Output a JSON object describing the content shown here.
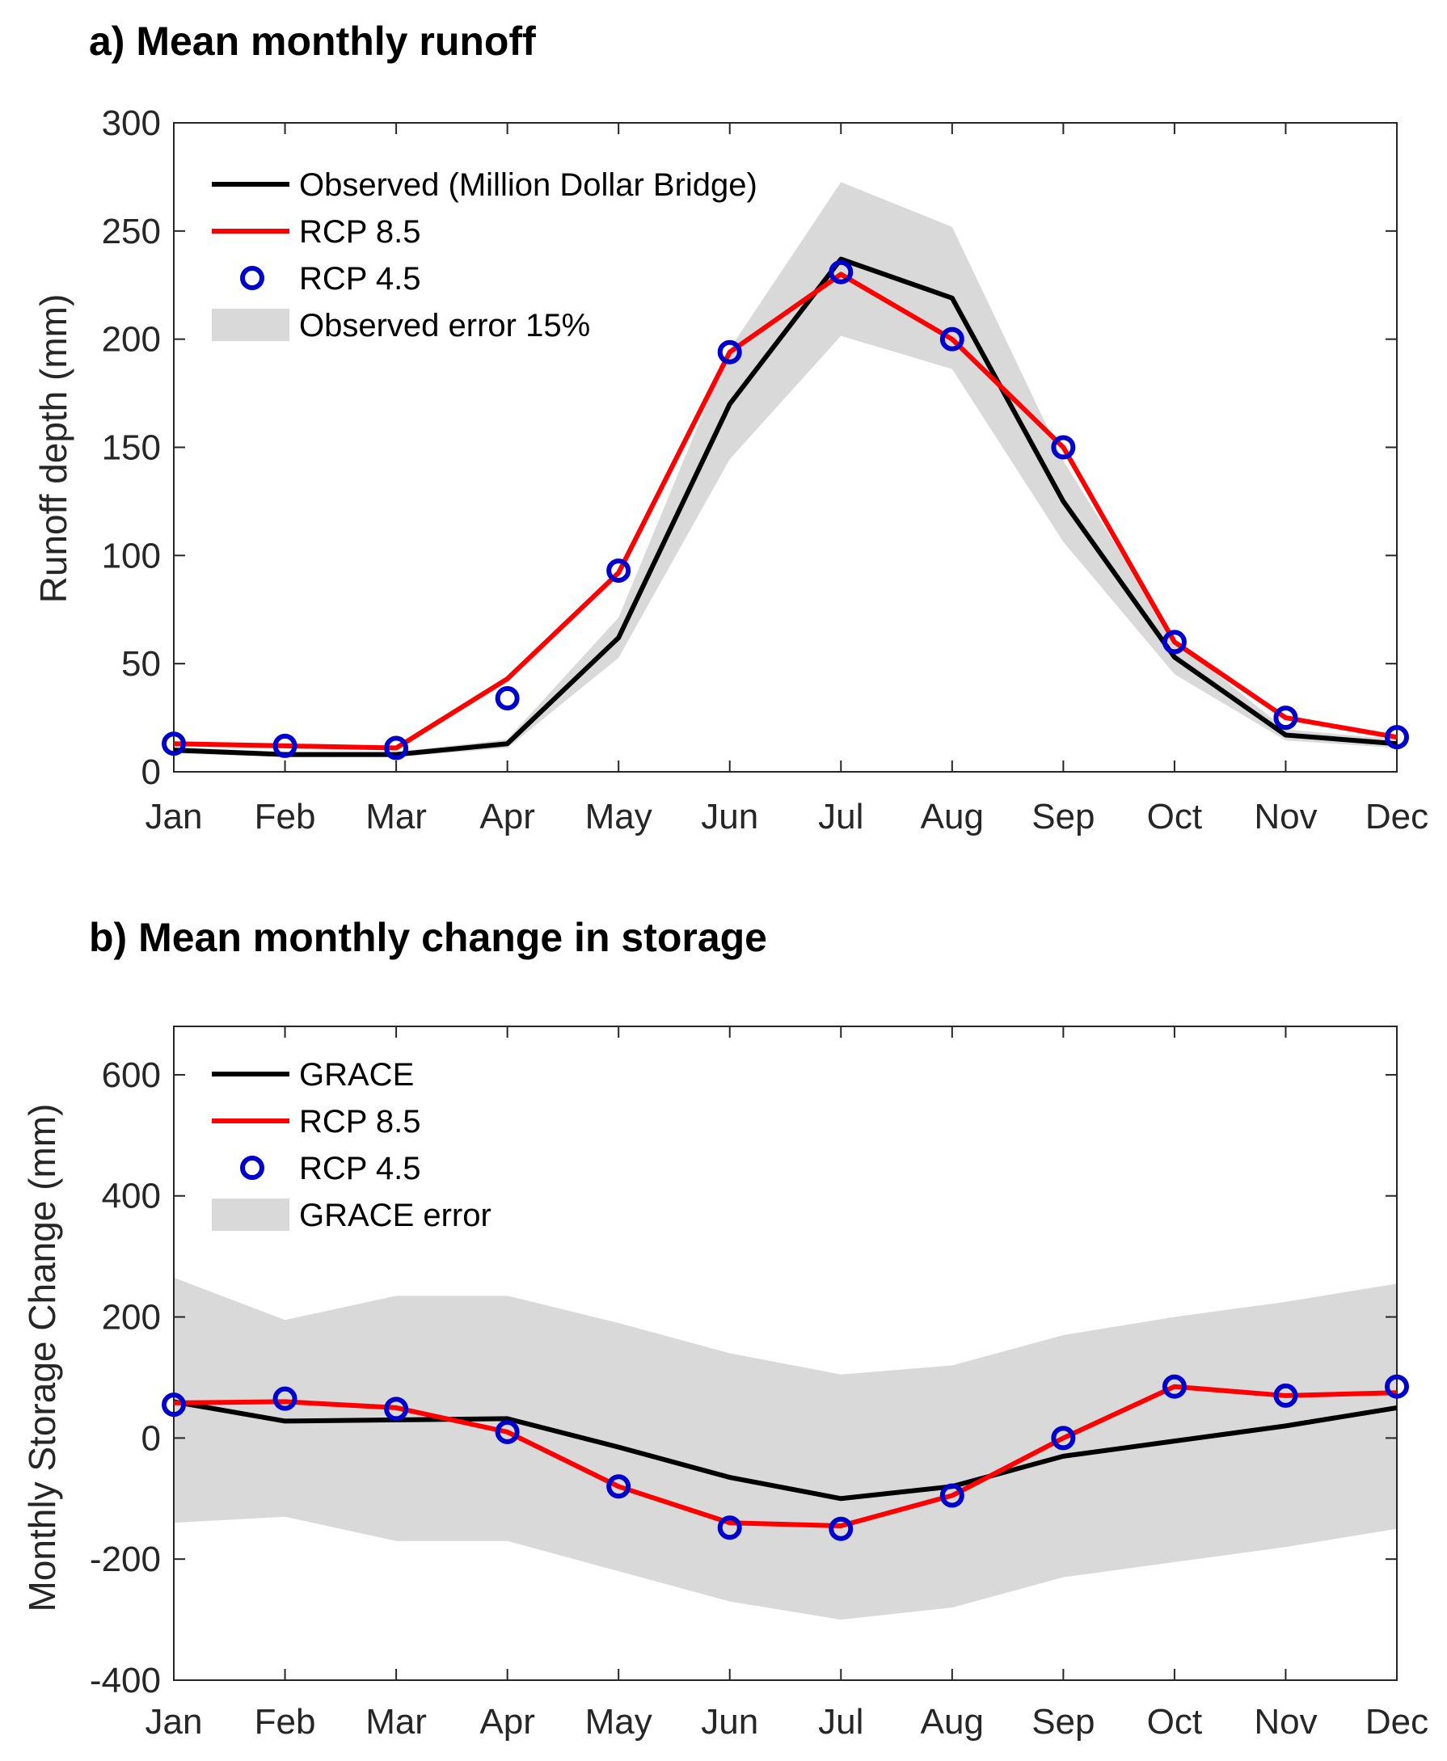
{
  "chart_data": [
    {
      "type": "line",
      "title": "a) Mean monthly runoff",
      "xlabel": "",
      "ylabel": "Runoff depth (mm)",
      "ylim": [
        0,
        300
      ],
      "yticks": [
        0,
        50,
        100,
        150,
        200,
        250,
        300
      ],
      "grid": false,
      "legend_position": "top-left",
      "categories": [
        "Jan",
        "Feb",
        "Mar",
        "Apr",
        "May",
        "Jun",
        "Jul",
        "Aug",
        "Sep",
        "Oct",
        "Nov",
        "Dec"
      ],
      "series": [
        {
          "name": "Observed (Million Dollar Bridge)",
          "style": "line",
          "color": "#000000",
          "values": [
            10,
            8,
            8,
            13,
            62,
            170,
            237,
            219,
            125,
            53,
            17,
            13
          ]
        },
        {
          "name": "RCP 8.5",
          "style": "line",
          "color": "#ff0000",
          "values": [
            13,
            12,
            11,
            43,
            92,
            194,
            230,
            200,
            150,
            60,
            25,
            16
          ]
        },
        {
          "name": "RCP 4.5",
          "style": "marker",
          "color": "#0000cc",
          "values": [
            13,
            12,
            11,
            34,
            93,
            194,
            231,
            200,
            150,
            60,
            25,
            16
          ]
        },
        {
          "name": "Observed error 15%",
          "style": "band",
          "color": "#d9d9d9",
          "lower": [
            8.5,
            6.8,
            6.8,
            11,
            52.7,
            144.5,
            201.5,
            186.2,
            106.3,
            45.1,
            14.5,
            11
          ],
          "upper": [
            11.5,
            9.2,
            9.2,
            15,
            71.3,
            195.5,
            272.6,
            251.9,
            143.8,
            61,
            19.6,
            15
          ]
        }
      ]
    },
    {
      "type": "line",
      "title": "b) Mean monthly change in storage",
      "xlabel": "",
      "ylabel": "Monthly Storage Change (mm)",
      "ylim": [
        -400,
        680
      ],
      "yticks": [
        -400,
        -200,
        0,
        200,
        400,
        600
      ],
      "grid": false,
      "legend_position": "top-left",
      "categories": [
        "Jan",
        "Feb",
        "Mar",
        "Apr",
        "May",
        "Jun",
        "Jul",
        "Aug",
        "Sep",
        "Oct",
        "Nov",
        "Dec"
      ],
      "series": [
        {
          "name": "GRACE",
          "style": "line",
          "color": "#000000",
          "values": [
            60,
            28,
            30,
            32,
            -15,
            -65,
            -100,
            -80,
            -30,
            -5,
            20,
            50
          ]
        },
        {
          "name": "RCP 8.5",
          "style": "line",
          "color": "#ff0000",
          "values": [
            58,
            60,
            50,
            10,
            -80,
            -140,
            -145,
            -95,
            0,
            85,
            70,
            75
          ]
        },
        {
          "name": "RCP 4.5",
          "style": "marker",
          "color": "#0000cc",
          "values": [
            55,
            65,
            48,
            10,
            -80,
            -148,
            -150,
            -95,
            0,
            85,
            70,
            85
          ]
        },
        {
          "name": "GRACE error",
          "style": "band",
          "color": "#d9d9d9",
          "lower": [
            -140,
            -130,
            -170,
            -170,
            -220,
            -270,
            -300,
            -280,
            -230,
            -205,
            -180,
            -150
          ],
          "upper": [
            265,
            195,
            235,
            235,
            190,
            140,
            105,
            120,
            170,
            200,
            225,
            255
          ]
        }
      ]
    }
  ]
}
